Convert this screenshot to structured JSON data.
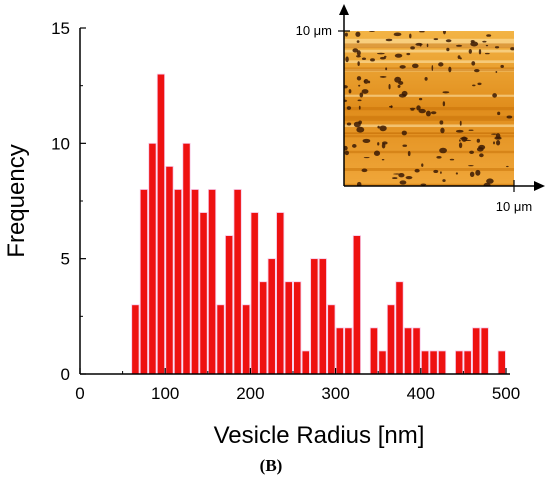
{
  "figure": {
    "caption": "(B)"
  },
  "chart_data": {
    "type": "bar",
    "xlabel": "Vesicle Radius [nm]",
    "ylabel": "Frequency",
    "xlim": [
      0,
      500
    ],
    "ylim": [
      0,
      15
    ],
    "x_ticks": [
      "0",
      "100",
      "200",
      "300",
      "400",
      "500"
    ],
    "y_ticks": [
      "0",
      "5",
      "10",
      "15"
    ],
    "bar_color": "#ee1111",
    "bin_width": 10,
    "bins": [
      {
        "x": 65,
        "y": 3
      },
      {
        "x": 75,
        "y": 8
      },
      {
        "x": 85,
        "y": 10
      },
      {
        "x": 95,
        "y": 13
      },
      {
        "x": 105,
        "y": 9
      },
      {
        "x": 115,
        "y": 8
      },
      {
        "x": 125,
        "y": 10
      },
      {
        "x": 135,
        "y": 8
      },
      {
        "x": 145,
        "y": 7
      },
      {
        "x": 155,
        "y": 8
      },
      {
        "x": 165,
        "y": 3
      },
      {
        "x": 175,
        "y": 6
      },
      {
        "x": 185,
        "y": 8
      },
      {
        "x": 195,
        "y": 3
      },
      {
        "x": 205,
        "y": 7
      },
      {
        "x": 215,
        "y": 4
      },
      {
        "x": 225,
        "y": 5
      },
      {
        "x": 235,
        "y": 7
      },
      {
        "x": 245,
        "y": 4
      },
      {
        "x": 255,
        "y": 4
      },
      {
        "x": 265,
        "y": 1
      },
      {
        "x": 275,
        "y": 5
      },
      {
        "x": 285,
        "y": 5
      },
      {
        "x": 295,
        "y": 3
      },
      {
        "x": 305,
        "y": 2
      },
      {
        "x": 315,
        "y": 2
      },
      {
        "x": 325,
        "y": 6
      },
      {
        "x": 345,
        "y": 2
      },
      {
        "x": 355,
        "y": 1
      },
      {
        "x": 365,
        "y": 3
      },
      {
        "x": 375,
        "y": 4
      },
      {
        "x": 385,
        "y": 2
      },
      {
        "x": 395,
        "y": 2
      },
      {
        "x": 405,
        "y": 1
      },
      {
        "x": 415,
        "y": 1
      },
      {
        "x": 425,
        "y": 1
      },
      {
        "x": 445,
        "y": 1
      },
      {
        "x": 455,
        "y": 1
      },
      {
        "x": 465,
        "y": 2
      },
      {
        "x": 475,
        "y": 2
      },
      {
        "x": 495,
        "y": 1
      }
    ],
    "inset": {
      "type": "afm-image",
      "y_axis_label": "10 μm",
      "x_axis_label": "10 μm",
      "colors": [
        "#f5a623",
        "#c8720a",
        "#3a1a05",
        "#ffe9b0"
      ]
    }
  }
}
